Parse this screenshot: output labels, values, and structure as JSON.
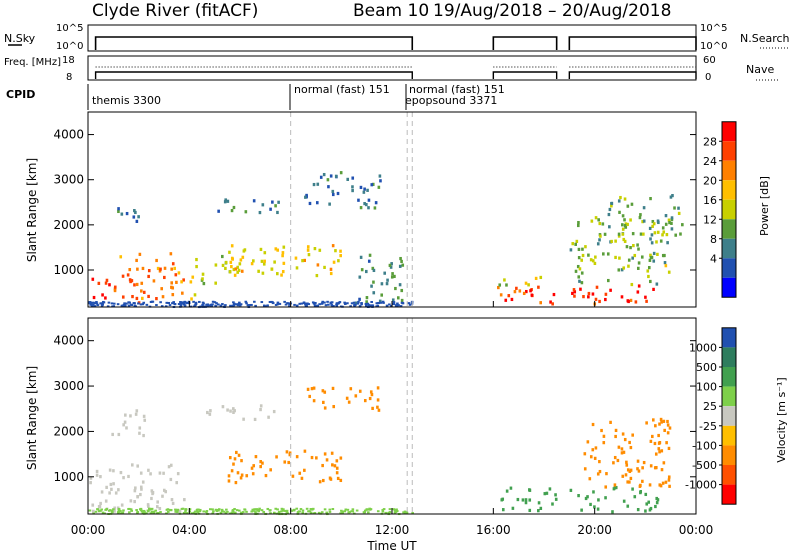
{
  "header": {
    "station": "Clyde River (fitACF)",
    "beam": "Beam 10",
    "date_range": "19/Aug/2018 – 20/Aug/2018"
  },
  "chart_data": [
    {
      "type": "line",
      "panel": "nsky-nsearch",
      "left_label": "N.Sky",
      "right_label": "N.Search",
      "left_ticks": [
        "10^5",
        "10^0"
      ],
      "right_ticks": [
        "10^5",
        "10^0"
      ],
      "series": [
        {
          "name": "N.Sky",
          "segments": [
            [
              0.3,
              12.8
            ],
            [
              16.0,
              18.5
            ],
            [
              19.0,
              24.0
            ]
          ]
        }
      ]
    },
    {
      "type": "line",
      "panel": "freq-nave",
      "left_label": "Freq. [MHz]",
      "right_label": "Nave",
      "left_ticks": [
        "18",
        "8"
      ],
      "right_ticks": [
        "60",
        "0"
      ],
      "series": [
        {
          "name": "Freq. [MHz]",
          "segments": [
            [
              0.3,
              12.8
            ],
            [
              16.0,
              18.5
            ],
            [
              19.0,
              24.0
            ]
          ]
        },
        {
          "name": "Nave",
          "segments": [
            [
              0.3,
              12.8
            ],
            [
              16.0,
              18.5
            ],
            [
              19.0,
              24.0
            ]
          ]
        }
      ]
    },
    {
      "type": "table",
      "panel": "cpid",
      "label": "CPID",
      "entries": [
        {
          "start": 0.0,
          "text": "themis 3300"
        },
        {
          "start": 8.0,
          "text": "normal (fast) 151"
        },
        {
          "start": 12.6,
          "text": "normal (fast) 151"
        },
        {
          "start": 12.6,
          "text": "epopsound 3371"
        }
      ]
    },
    {
      "type": "heatmap",
      "panel": "power",
      "ylabel": "Slant Range [km]",
      "yticks": [
        "1000",
        "2000",
        "3000",
        "4000"
      ],
      "ylim": [
        180,
        4500
      ],
      "xlim": [
        0,
        24
      ],
      "colorbar": {
        "label": "Power [dB]",
        "ticks": [
          "28",
          "24",
          "20",
          "16",
          "12",
          "8",
          "4"
        ],
        "colors": [
          "#ff0000",
          "#ff4000",
          "#ff8000",
          "#ffbf00",
          "#c8d000",
          "#5a9d3a",
          "#3e7f8a",
          "#2050b0",
          "#0000ff"
        ]
      },
      "blobs": [
        {
          "t0": 0.0,
          "t1": 0.8,
          "r0": 300,
          "r1": 900,
          "v": 26
        },
        {
          "t0": 1.0,
          "t1": 3.8,
          "r0": 300,
          "r1": 1400,
          "v": 22
        },
        {
          "t0": 0.8,
          "t1": 2.2,
          "r0": 2100,
          "r1": 2500,
          "v": 6
        },
        {
          "t0": 3.8,
          "t1": 4.2,
          "r0": 300,
          "r1": 600,
          "v": 14
        },
        {
          "t0": 4.5,
          "t1": 7.5,
          "r0": 2300,
          "r1": 2600,
          "v": 6
        },
        {
          "t0": 4.0,
          "t1": 6.0,
          "r0": 700,
          "r1": 1400,
          "v": 14
        },
        {
          "t0": 5.5,
          "t1": 10.0,
          "r0": 900,
          "r1": 1600,
          "v": 16
        },
        {
          "t0": 8.5,
          "t1": 11.5,
          "r0": 2400,
          "r1": 3200,
          "v": 6
        },
        {
          "t0": 10.5,
          "t1": 12.5,
          "r0": 300,
          "r1": 1400,
          "v": 8
        },
        {
          "t0": 16.0,
          "t1": 18.5,
          "r0": 250,
          "r1": 700,
          "v": 26
        },
        {
          "t0": 16.2,
          "t1": 18.4,
          "r0": 700,
          "r1": 900,
          "v": 14
        },
        {
          "t0": 19.0,
          "t1": 22.5,
          "r0": 250,
          "r1": 700,
          "v": 26
        },
        {
          "t0": 19.0,
          "t1": 23.0,
          "r0": 700,
          "r1": 2200,
          "v": 12
        },
        {
          "t0": 20.5,
          "t1": 23.5,
          "r0": 1800,
          "r1": 2700,
          "v": 10
        }
      ]
    },
    {
      "type": "heatmap",
      "panel": "velocity",
      "ylabel": "Slant Range [km]",
      "yticks": [
        "1000",
        "2000",
        "3000",
        "4000"
      ],
      "ylim": [
        180,
        4500
      ],
      "xlim": [
        0,
        24
      ],
      "colorbar": {
        "label": "Velocity [m s⁻¹]",
        "ticks": [
          "1000",
          "500",
          "100",
          "25",
          "-25",
          "-100",
          "-500",
          "-1000"
        ],
        "colors": [
          "#2050b0",
          "#2e7d5e",
          "#41a04f",
          "#7ed04a",
          "#c8c8c0",
          "#ffbf00",
          "#ff8c00",
          "#ff5000",
          "#ff0000"
        ]
      },
      "blobs": [
        {
          "t0": 0.0,
          "t1": 3.8,
          "r0": 250,
          "r1": 1300,
          "v": 0
        },
        {
          "t0": 0.8,
          "t1": 2.2,
          "r0": 1900,
          "r1": 2500,
          "v": 0
        },
        {
          "t0": 4.5,
          "t1": 7.5,
          "r0": 2300,
          "r1": 2600,
          "v": 0
        },
        {
          "t0": 5.5,
          "t1": 10.0,
          "r0": 900,
          "r1": 1600,
          "v": -300
        },
        {
          "t0": 8.5,
          "t1": 11.5,
          "r0": 2500,
          "r1": 3000,
          "v": -200
        },
        {
          "t0": 16.0,
          "t1": 18.5,
          "r0": 250,
          "r1": 800,
          "v": 200
        },
        {
          "t0": 19.0,
          "t1": 22.5,
          "r0": 250,
          "r1": 800,
          "v": 150
        },
        {
          "t0": 19.5,
          "t1": 23.0,
          "r0": 800,
          "r1": 2300,
          "v": -300
        }
      ]
    }
  ],
  "xaxis": {
    "label": "Time UT",
    "ticks": [
      "00:00",
      "04:00",
      "08:00",
      "12:00",
      "16:00",
      "20:00",
      "00:00"
    ]
  }
}
